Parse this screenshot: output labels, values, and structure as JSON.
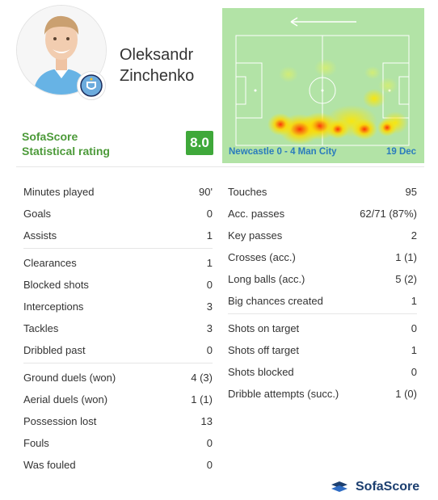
{
  "player": {
    "first_name": "Oleksandr",
    "last_name": "Zinchenko",
    "club_icon": "man-city-crest-icon"
  },
  "rating": {
    "label_line1": "SofaScore",
    "label_line2": "Statistical rating",
    "value": "8.0",
    "color": "#3fa83a"
  },
  "match": {
    "label": "Newcastle 0 - 4 Man City",
    "date": "19 Dec",
    "direction_icon": "arrow-left-icon"
  },
  "stats_left": [
    [
      {
        "label": "Minutes played",
        "value": "90'"
      },
      {
        "label": "Goals",
        "value": "0"
      },
      {
        "label": "Assists",
        "value": "1"
      }
    ],
    [
      {
        "label": "Clearances",
        "value": "1"
      },
      {
        "label": "Blocked shots",
        "value": "0"
      },
      {
        "label": "Interceptions",
        "value": "3"
      },
      {
        "label": "Tackles",
        "value": "3"
      },
      {
        "label": "Dribbled past",
        "value": "0"
      }
    ],
    [
      {
        "label": "Ground duels (won)",
        "value": "4 (3)"
      },
      {
        "label": "Aerial duels (won)",
        "value": "1 (1)"
      },
      {
        "label": "Possession lost",
        "value": "13"
      },
      {
        "label": "Fouls",
        "value": "0"
      },
      {
        "label": "Was fouled",
        "value": "0"
      }
    ]
  ],
  "stats_right": [
    [
      {
        "label": "Touches",
        "value": "95"
      },
      {
        "label": "Acc. passes",
        "value": "62/71 (87%)"
      },
      {
        "label": "Key passes",
        "value": "2"
      },
      {
        "label": "Crosses (acc.)",
        "value": "1 (1)"
      },
      {
        "label": "Long balls (acc.)",
        "value": "5 (2)"
      },
      {
        "label": "Big chances created",
        "value": "1"
      }
    ],
    [
      {
        "label": "Shots on target",
        "value": "0"
      },
      {
        "label": "Shots off target",
        "value": "1"
      },
      {
        "label": "Shots blocked",
        "value": "0"
      },
      {
        "label": "Dribble attempts (succ.)",
        "value": "1 (0)"
      }
    ]
  ],
  "footer": {
    "brand": "SofaScore",
    "icon": "sofascore-logo-icon"
  }
}
